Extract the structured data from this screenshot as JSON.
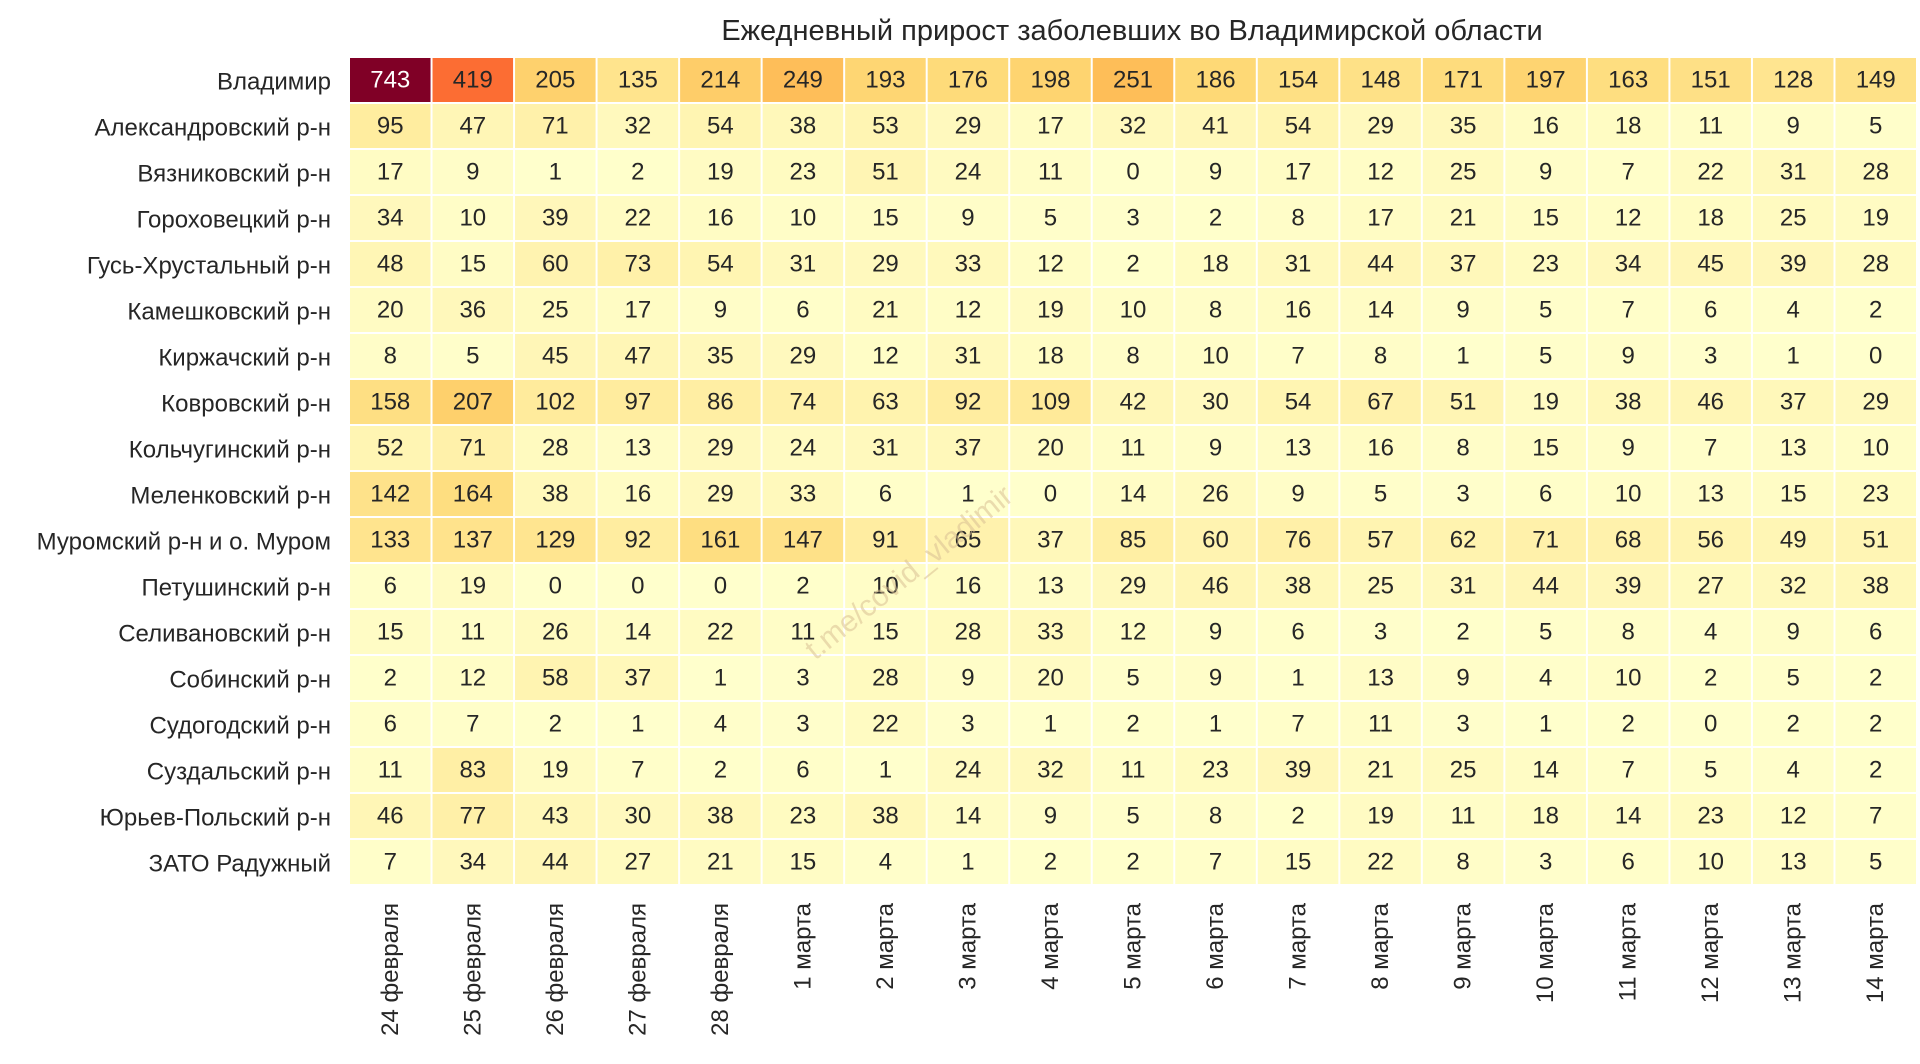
{
  "chart_data": {
    "type": "heatmap",
    "title": "Ежедневный прирост заболевших во Владимирской области",
    "watermark": "t.me/covid_vladimir",
    "colorscale": "YlOrRd",
    "grid": false,
    "legend": "none",
    "x_categories": [
      "24 февраля",
      "25 февраля",
      "26 февраля",
      "27 февраля",
      "28 февраля",
      "1 марта",
      "2 марта",
      "3 марта",
      "4 марта",
      "5 марта",
      "6 марта",
      "7 марта",
      "8 марта",
      "9 марта",
      "10 марта",
      "11 марта",
      "12 марта",
      "13 марта",
      "14 марта"
    ],
    "y_categories": [
      "Владимир",
      "Александровский р-н",
      "Вязниковский р-н",
      "Гороховецкий р-н",
      "Гусь-Хрустальный р-н",
      "Камешковский р-н",
      "Киржачский р-н",
      "Ковровский р-н",
      "Кольчугинский р-н",
      "Меленковский р-н",
      "Муромский р-н и о. Муром",
      "Петушинский р-н",
      "Селивановский р-н",
      "Собинский р-н",
      "Судогодский р-н",
      "Суздальский р-н",
      "Юрьев-Польский р-н",
      "ЗАТО Радужный"
    ],
    "values": [
      [
        743,
        419,
        205,
        135,
        214,
        249,
        193,
        176,
        198,
        251,
        186,
        154,
        148,
        171,
        197,
        163,
        151,
        128,
        149
      ],
      [
        95,
        47,
        71,
        32,
        54,
        38,
        53,
        29,
        17,
        32,
        41,
        54,
        29,
        35,
        16,
        18,
        11,
        9,
        5
      ],
      [
        17,
        9,
        1,
        2,
        19,
        23,
        51,
        24,
        11,
        0,
        9,
        17,
        12,
        25,
        9,
        7,
        22,
        31,
        28
      ],
      [
        34,
        10,
        39,
        22,
        16,
        10,
        15,
        9,
        5,
        3,
        2,
        8,
        17,
        21,
        15,
        12,
        18,
        25,
        19
      ],
      [
        48,
        15,
        60,
        73,
        54,
        31,
        29,
        33,
        12,
        2,
        18,
        31,
        44,
        37,
        23,
        34,
        45,
        39,
        28
      ],
      [
        20,
        36,
        25,
        17,
        9,
        6,
        21,
        12,
        19,
        10,
        8,
        16,
        14,
        9,
        5,
        7,
        6,
        4,
        2
      ],
      [
        8,
        5,
        45,
        47,
        35,
        29,
        12,
        31,
        18,
        8,
        10,
        7,
        8,
        1,
        5,
        9,
        3,
        1,
        0
      ],
      [
        158,
        207,
        102,
        97,
        86,
        74,
        63,
        92,
        109,
        42,
        30,
        54,
        67,
        51,
        19,
        38,
        46,
        37,
        29
      ],
      [
        52,
        71,
        28,
        13,
        29,
        24,
        31,
        37,
        20,
        11,
        9,
        13,
        16,
        8,
        15,
        9,
        7,
        13,
        10
      ],
      [
        142,
        164,
        38,
        16,
        29,
        33,
        6,
        1,
        0,
        14,
        26,
        9,
        5,
        3,
        6,
        10,
        13,
        15,
        23
      ],
      [
        133,
        137,
        129,
        92,
        161,
        147,
        91,
        65,
        37,
        85,
        60,
        76,
        57,
        62,
        71,
        68,
        56,
        49,
        51
      ],
      [
        6,
        19,
        0,
        0,
        0,
        2,
        10,
        16,
        13,
        29,
        46,
        38,
        25,
        31,
        44,
        39,
        27,
        32,
        38
      ],
      [
        15,
        11,
        26,
        14,
        22,
        11,
        15,
        28,
        33,
        12,
        9,
        6,
        3,
        2,
        5,
        8,
        4,
        9,
        6
      ],
      [
        2,
        12,
        58,
        37,
        1,
        3,
        28,
        9,
        20,
        5,
        9,
        1,
        13,
        9,
        4,
        10,
        2,
        5,
        2
      ],
      [
        6,
        7,
        2,
        1,
        4,
        3,
        22,
        3,
        1,
        2,
        1,
        7,
        11,
        3,
        1,
        2,
        0,
        2,
        2
      ],
      [
        11,
        83,
        19,
        7,
        2,
        6,
        1,
        24,
        32,
        11,
        23,
        39,
        21,
        25,
        14,
        7,
        5,
        4,
        2
      ],
      [
        46,
        77,
        43,
        30,
        38,
        23,
        38,
        14,
        9,
        5,
        8,
        2,
        19,
        11,
        18,
        14,
        23,
        12,
        7
      ],
      [
        7,
        34,
        44,
        27,
        21,
        15,
        4,
        1,
        2,
        2,
        7,
        15,
        22,
        8,
        3,
        6,
        10,
        13,
        5
      ]
    ]
  }
}
